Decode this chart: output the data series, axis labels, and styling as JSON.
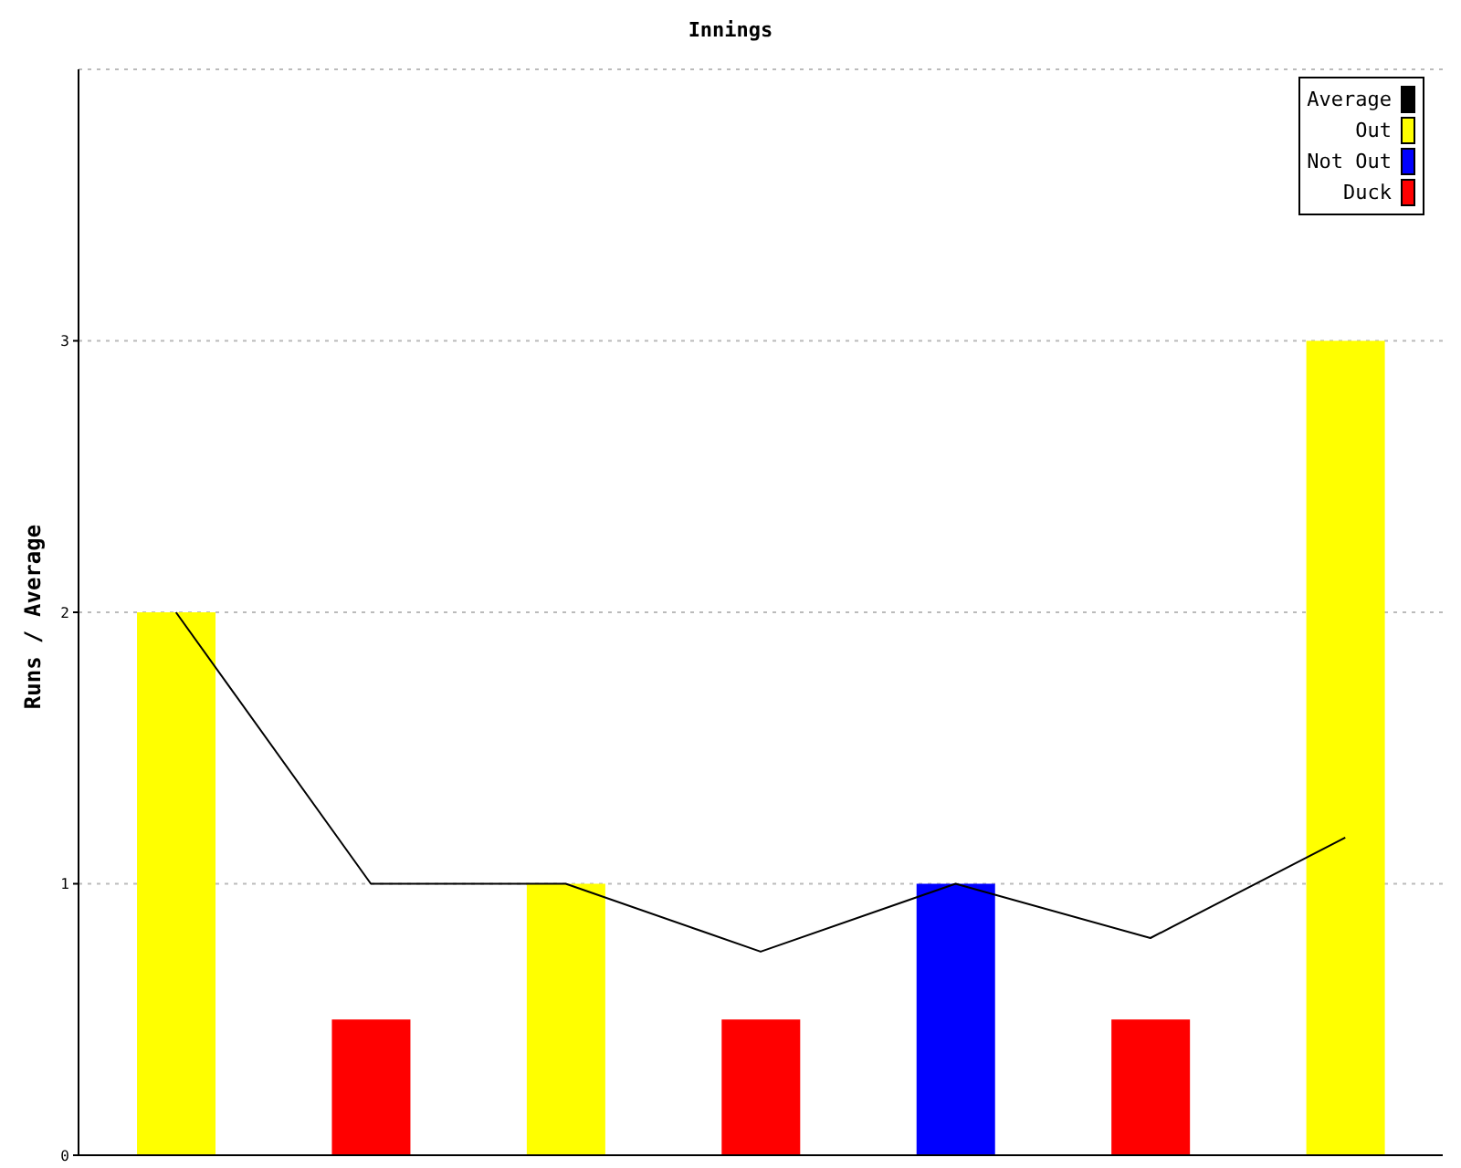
{
  "chart_data": {
    "type": "bar",
    "title": "Innings",
    "ylabel": "Runs / Average",
    "categories": [
      null,
      null,
      null,
      null,
      null,
      null,
      null
    ],
    "stacked": true,
    "series": [
      {
        "name": "Average",
        "type": "line",
        "color": "#000000",
        "values": [
          2,
          1,
          1,
          0.75,
          1,
          0.8,
          1.17
        ]
      },
      {
        "name": "Out",
        "color": "#ffff00",
        "values": [
          2,
          null,
          1,
          null,
          null,
          null,
          3
        ]
      },
      {
        "name": "Not Out",
        "color": "#0000ff",
        "values": [
          null,
          null,
          null,
          null,
          1,
          null,
          null
        ]
      },
      {
        "name": "Duck",
        "color": "#ff0000",
        "values": [
          null,
          0.5,
          null,
          0.5,
          null,
          0.5,
          null
        ]
      }
    ],
    "ylim": [
      0,
      4
    ],
    "yticks": [
      0,
      1,
      2,
      3
    ],
    "grid": "y",
    "legend": "top right",
    "marker": "none",
    "tick_labels": "y"
  }
}
